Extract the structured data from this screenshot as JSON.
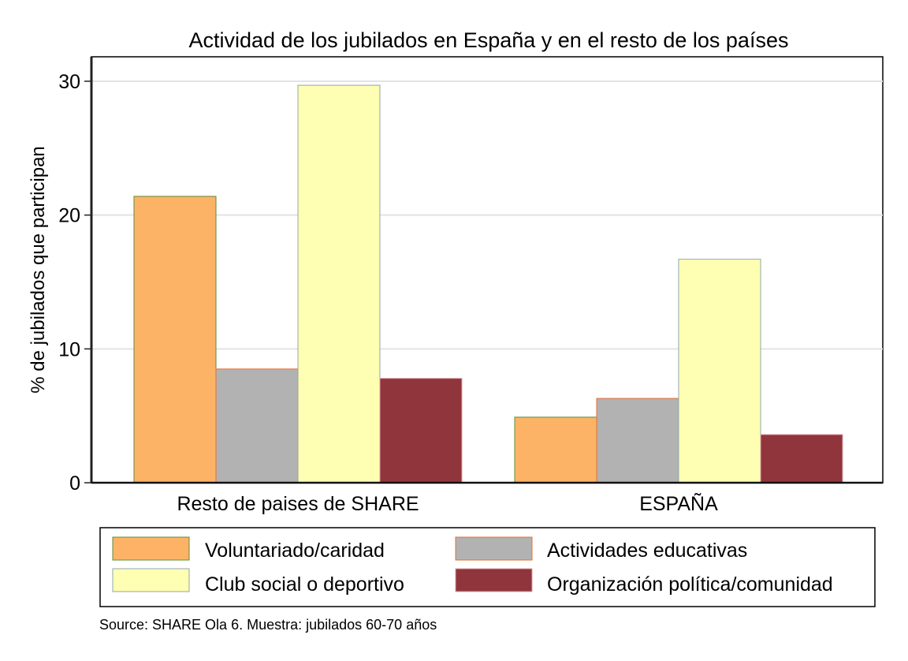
{
  "chart_data": {
    "type": "bar",
    "title": "Actividad de los jubilados en España y en el resto de los países",
    "xlabel": "",
    "ylabel": "% de jubilados que participan",
    "ylim": [
      0,
      30
    ],
    "yticks": [
      0,
      10,
      20,
      30
    ],
    "grid": true,
    "categories": [
      "Resto de paises de SHARE",
      "ESPAÑA"
    ],
    "series": [
      {
        "name": "Voluntariado/caridad",
        "color": "#FDB366",
        "edge": "#5E8C3A",
        "values": [
          21.4,
          4.9
        ]
      },
      {
        "name": "Actividades educativas",
        "color": "#B2B2B2",
        "edge": "#E0703A",
        "values": [
          8.5,
          6.3
        ]
      },
      {
        "name": "Club social o deportivo",
        "color": "#FFFFB3",
        "edge": "#8FA6A8",
        "values": [
          29.7,
          16.7
        ]
      },
      {
        "name": "Organización política/comunidad",
        "color": "#90353B",
        "edge": "#D9A0A8",
        "values": [
          7.8,
          3.6
        ]
      }
    ],
    "legend": {
      "placement": "bottom",
      "order": [
        0,
        1,
        2,
        3
      ]
    },
    "note": "Source: SHARE Ola 6. Muestra: jubilados 60-70 años"
  }
}
